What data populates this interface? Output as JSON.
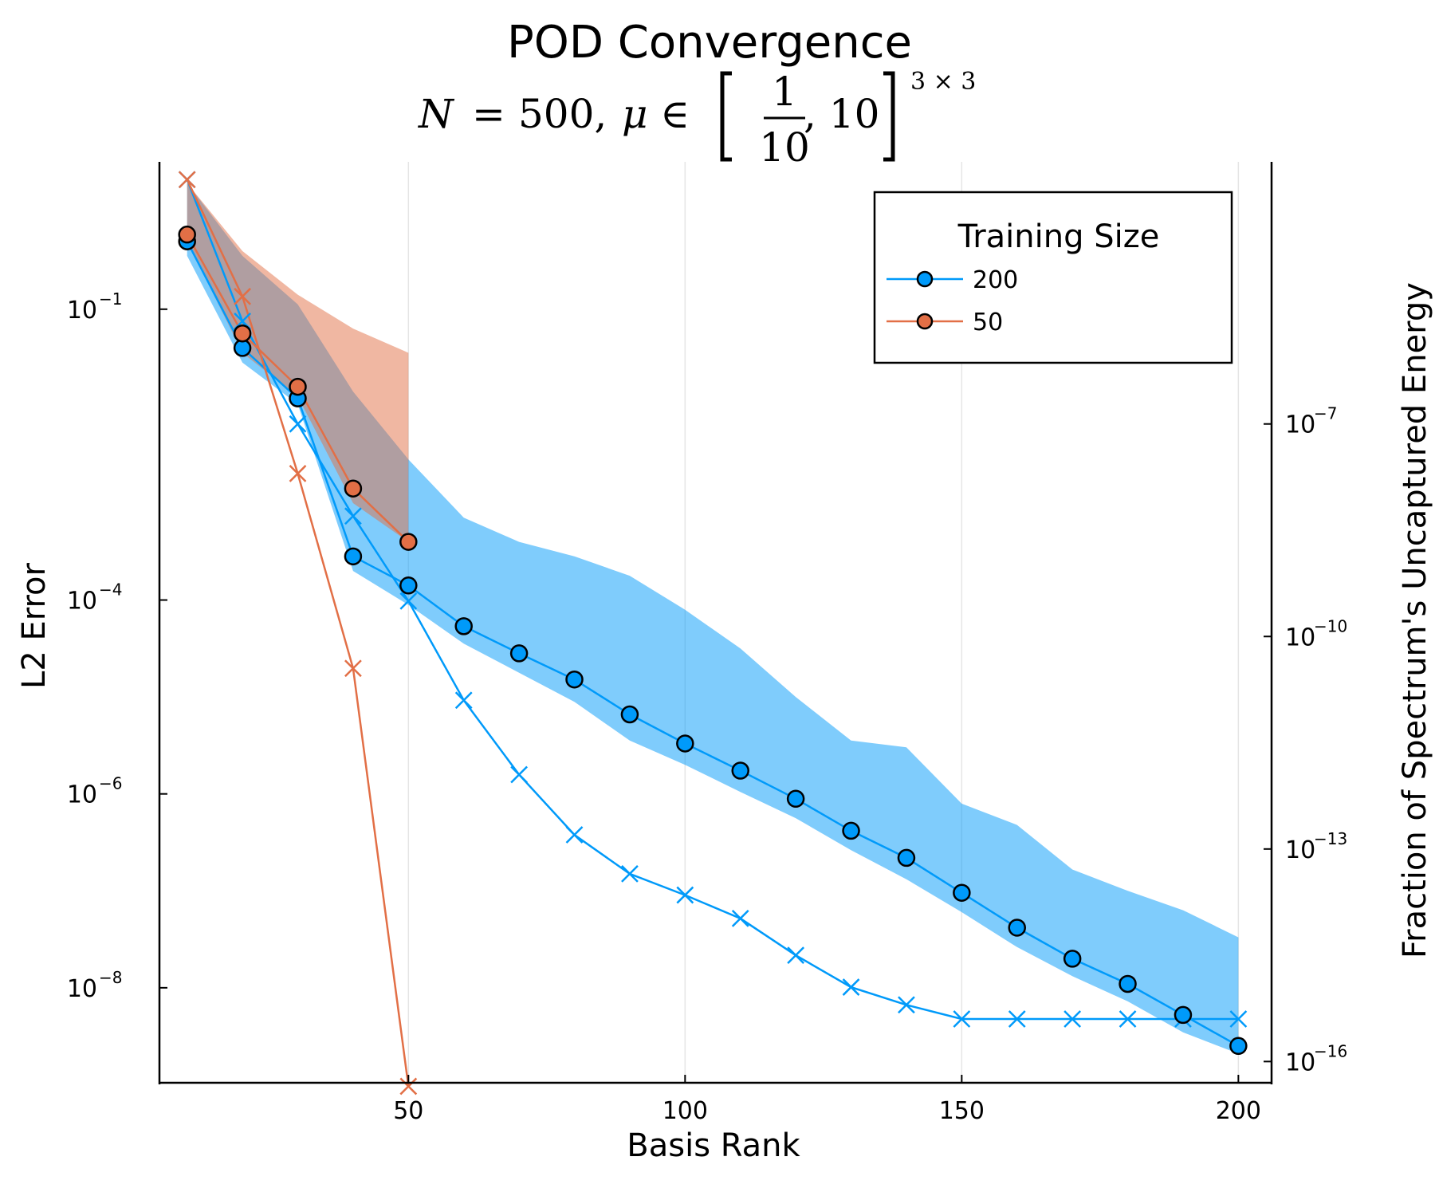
{
  "chart_data": {
    "type": "line",
    "title": "POD Convergence",
    "subtitle": {
      "lhs_var": "N",
      "eq": "=",
      "n_value": "500,",
      "mu_var": "μ",
      "in": "∈",
      "frac_num": "1",
      "frac_den": "10",
      "upper": ", 10",
      "exponent": "3 × 3"
    },
    "xlabel": "Basis Rank",
    "ylabel": "L2 Error",
    "ylabel_right": "Fraction of Spectrum's Uncaptured Energy",
    "x_ticks": [
      "50",
      "100",
      "150",
      "200"
    ],
    "y_ticks_left": [
      {
        "base": "10",
        "exp": "−1",
        "value": -1
      },
      {
        "base": "10",
        "exp": "−4",
        "value": -4
      },
      {
        "base": "10",
        "exp": "−6",
        "value": -6
      },
      {
        "base": "10",
        "exp": "−8",
        "value": -8
      }
    ],
    "y_ticks_right": [
      {
        "base": "10",
        "exp": "−7",
        "value": -7
      },
      {
        "base": "10",
        "exp": "−10",
        "value": -10
      },
      {
        "base": "10",
        "exp": "−13",
        "value": -13
      },
      {
        "base": "10",
        "exp": "−16",
        "value": -16
      }
    ],
    "xlim": [
      5,
      206
    ],
    "ylim_left_log10": [
      -8.98,
      0.52
    ],
    "ylim_right_log10": [
      -16.3,
      -3.3
    ],
    "yscale": "log",
    "grid": "vertical",
    "legend": {
      "title": "Training Size",
      "placement": "top-right",
      "entries": [
        "200",
        "50"
      ]
    },
    "colors": {
      "s200": "#009AFA",
      "s50": "#E26F46"
    },
    "series": [
      {
        "name": "200",
        "color": "#009AFA",
        "x": [
          10,
          20,
          30,
          40,
          50,
          60,
          70,
          80,
          90,
          100,
          110,
          120,
          130,
          140,
          150,
          160,
          170,
          180,
          190,
          200
        ],
        "error_log10": [
          -0.3,
          -1.4,
          -1.92,
          -3.55,
          -3.85,
          -4.27,
          -4.55,
          -4.82,
          -5.18,
          -5.48,
          -5.76,
          -6.05,
          -6.38,
          -6.66,
          -7.02,
          -7.38,
          -7.7,
          -7.96,
          -8.28,
          -8.6
        ],
        "band_upper_log10": [
          0.3,
          -0.45,
          -0.95,
          -1.85,
          -2.55,
          -3.15,
          -3.4,
          -3.55,
          -3.75,
          -4.1,
          -4.5,
          -5.0,
          -5.45,
          -5.52,
          -6.1,
          -6.32,
          -6.78,
          -7.0,
          -7.2,
          -7.48
        ],
        "band_lower_log10": [
          -0.45,
          -1.55,
          -1.98,
          -3.7,
          -4.05,
          -4.45,
          -4.75,
          -5.05,
          -5.45,
          -5.7,
          -5.98,
          -6.25,
          -6.58,
          -6.88,
          -7.22,
          -7.58,
          -7.88,
          -8.14,
          -8.46,
          -8.68
        ],
        "energy_log10": [
          -3.55,
          -5.55,
          -7.0,
          -8.3,
          -9.5,
          -10.9,
          -11.95,
          -12.8,
          -13.35,
          -13.65,
          -13.98,
          -14.5,
          -14.95,
          -15.2,
          -15.4,
          -15.4,
          -15.4,
          -15.4,
          -15.4,
          -15.4
        ]
      },
      {
        "name": "50",
        "color": "#E26F46",
        "x": [
          10,
          20,
          30,
          40,
          50
        ],
        "error_log10": [
          -0.23,
          -1.25,
          -1.8,
          -2.85,
          -3.4
        ],
        "band_upper_log10": [
          0.3,
          -0.4,
          -0.85,
          -1.2,
          -1.45
        ],
        "band_lower_log10": [
          -0.3,
          -1.45,
          -1.9,
          -3.0,
          -3.4
        ],
        "energy_log10": [
          -3.55,
          -5.2,
          -7.7,
          -10.45,
          -16.35
        ]
      }
    ]
  }
}
